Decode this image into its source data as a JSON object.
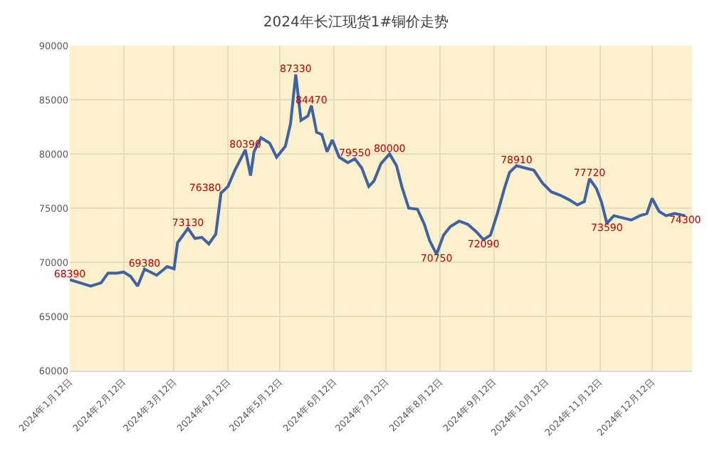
{
  "chart_data": {
    "type": "line",
    "title": "2024年长江现货1#铜价走势",
    "x": [
      "2024-01-12",
      "2024-01-18",
      "2024-01-24",
      "2024-01-30",
      "2024-02-03",
      "2024-02-08",
      "2024-02-12",
      "2024-02-16",
      "2024-02-20",
      "2024-02-24",
      "2024-03-02",
      "2024-03-08",
      "2024-03-12",
      "2024-03-14",
      "2024-03-20",
      "2024-03-24",
      "2024-03-28",
      "2024-04-01",
      "2024-04-05",
      "2024-04-08",
      "2024-04-12",
      "2024-04-16",
      "2024-04-22",
      "2024-04-25",
      "2024-04-27",
      "2024-05-01",
      "2024-05-06",
      "2024-05-10",
      "2024-05-15",
      "2024-05-18",
      "2024-05-21",
      "2024-05-24",
      "2024-05-28",
      "2024-05-30",
      "2024-06-02",
      "2024-06-05",
      "2024-06-08",
      "2024-06-11",
      "2024-06-15",
      "2024-06-20",
      "2024-06-24",
      "2024-06-28",
      "2024-07-02",
      "2024-07-05",
      "2024-07-09",
      "2024-07-14",
      "2024-07-18",
      "2024-07-21",
      "2024-07-25",
      "2024-07-30",
      "2024-08-03",
      "2024-08-06",
      "2024-08-10",
      "2024-08-14",
      "2024-08-18",
      "2024-08-23",
      "2024-08-28",
      "2024-09-02",
      "2024-09-06",
      "2024-09-10",
      "2024-09-14",
      "2024-09-18",
      "2024-09-21",
      "2024-09-25",
      "2024-09-30",
      "2024-10-05",
      "2024-10-10",
      "2024-10-15",
      "2024-10-20",
      "2024-10-25",
      "2024-10-30",
      "2024-11-03",
      "2024-11-06",
      "2024-11-10",
      "2024-11-13",
      "2024-11-16",
      "2024-11-20",
      "2024-11-25",
      "2024-11-30",
      "2024-12-05",
      "2024-12-09",
      "2024-12-12",
      "2024-12-16",
      "2024-12-20",
      "2024-12-25",
      "2024-12-31"
    ],
    "series": [
      {
        "color": "#3d62a8",
        "values": [
          68390,
          68100,
          67800,
          68100,
          69000,
          69000,
          69100,
          68700,
          67800,
          69380,
          68800,
          69600,
          69400,
          71800,
          73130,
          72200,
          72300,
          71700,
          72600,
          76380,
          77000,
          78500,
          80390,
          78000,
          80200,
          81500,
          81000,
          79700,
          80700,
          82800,
          87330,
          83100,
          83500,
          84470,
          82000,
          81800,
          80200,
          81300,
          79700,
          79200,
          79550,
          78700,
          77000,
          77500,
          79100,
          80000,
          78900,
          77000,
          75000,
          74900,
          73500,
          72000,
          70750,
          72500,
          73300,
          73800,
          73500,
          72800,
          72090,
          72500,
          74500,
          76800,
          78300,
          78910,
          78700,
          78500,
          77300,
          76500,
          76200,
          75800,
          75300,
          75600,
          77720,
          76800,
          75500,
          73590,
          74300,
          74100,
          73900,
          74300,
          74500,
          75900,
          74700,
          74300,
          74500,
          74300
        ],
        "value_labels": [
          "68390",
          null,
          null,
          null,
          null,
          null,
          null,
          null,
          null,
          "69380",
          null,
          null,
          null,
          null,
          "73130",
          null,
          null,
          null,
          null,
          "76380",
          null,
          null,
          "80390",
          null,
          null,
          null,
          null,
          null,
          null,
          null,
          "87330",
          null,
          null,
          "84470",
          null,
          null,
          null,
          null,
          null,
          null,
          "79550",
          null,
          null,
          null,
          null,
          "80000",
          null,
          null,
          null,
          null,
          null,
          null,
          "70750",
          null,
          null,
          null,
          null,
          null,
          "72090",
          null,
          null,
          null,
          null,
          "78910",
          null,
          null,
          null,
          null,
          null,
          null,
          null,
          null,
          "77720",
          null,
          null,
          "73590",
          null,
          null,
          null,
          null,
          null,
          null,
          null,
          null,
          null,
          "74300"
        ]
      }
    ],
    "xlim": [
      "2024-01-12",
      "2025-01-04"
    ],
    "xticks": [
      {
        "value": "2024-01-12",
        "label": "2024年1月12日"
      },
      {
        "value": "2024-02-12",
        "label": "2024年2月12日"
      },
      {
        "value": "2024-03-12",
        "label": "2024年3月12日"
      },
      {
        "value": "2024-04-12",
        "label": "2024年4月12日"
      },
      {
        "value": "2024-05-12",
        "label": "2024年5月12日"
      },
      {
        "value": "2024-06-12",
        "label": "2024年6月12日"
      },
      {
        "value": "2024-07-12",
        "label": "2024年7月12日"
      },
      {
        "value": "2024-08-12",
        "label": "2024年8月12日"
      },
      {
        "value": "2024-09-12",
        "label": "2024年9月12日"
      },
      {
        "value": "2024-10-12",
        "label": "2024年10月12日"
      },
      {
        "value": "2024-11-12",
        "label": "2024年11月12日"
      },
      {
        "value": "2024-12-12",
        "label": "2024年12月12日"
      }
    ],
    "ylim": [
      60000,
      90000
    ],
    "yticks": [
      60000,
      65000,
      70000,
      75000,
      80000,
      85000,
      90000
    ],
    "grid": true,
    "legend": false,
    "marker": "none",
    "line_style": "solid"
  }
}
